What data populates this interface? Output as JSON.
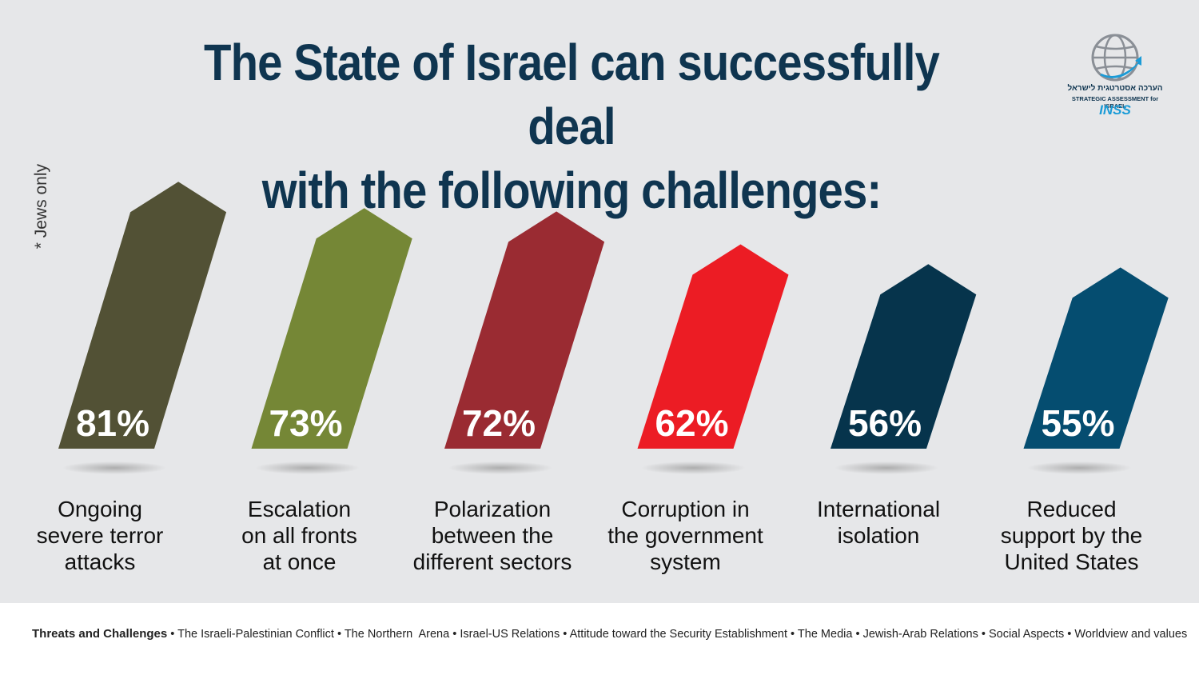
{
  "title_lines": [
    "The State of Israel can successfully deal",
    "with the following challenges:"
  ],
  "note": "* Jews only",
  "logo": {
    "hebrew": "הערכה אסטרטגית לישראל",
    "english": "STRATEGIC ASSESSMENT for ISRAEL",
    "brand": "INSS"
  },
  "colors": {
    "background": "#e6e7e9",
    "title": "#0f3550",
    "bars": [
      "#525135",
      "#758736",
      "#9a2b32",
      "#ec1c24",
      "#06344c",
      "#054d70"
    ]
  },
  "chart_data": {
    "type": "bar",
    "title": "The State of Israel can successfully deal with the following challenges:",
    "categories": [
      [
        "Ongoing",
        "severe terror",
        "attacks"
      ],
      [
        "Escalation",
        "on all fronts",
        "at once"
      ],
      [
        "Polarization",
        "between the",
        "different sectors"
      ],
      [
        "Corruption in",
        "the government",
        "system"
      ],
      [
        "International",
        "isolation"
      ],
      [
        "Reduced",
        "support by the",
        "United States"
      ]
    ],
    "values": [
      81,
      73,
      72,
      62,
      56,
      55
    ],
    "value_labels": [
      "81%",
      "73%",
      "72%",
      "62%",
      "56%",
      "55%"
    ],
    "ylim": [
      0,
      100
    ],
    "grid": false,
    "legend": "none"
  },
  "footer": {
    "lead": "Threats and Challenges",
    "items": [
      "The Israeli-Palestinian Conflict",
      "The Northern  Arena",
      "Israel-US Relations",
      "Attitude toward the Security Establishment",
      "The Media",
      "Jewish-Arab Relations",
      "Social Aspects",
      "Worldview and values"
    ],
    "separator": "•"
  }
}
